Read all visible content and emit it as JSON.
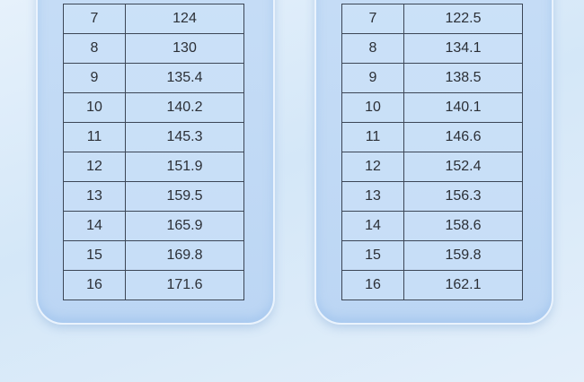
{
  "tables": [
    {
      "rows": [
        {
          "age": "7",
          "value": "124"
        },
        {
          "age": "8",
          "value": "130"
        },
        {
          "age": "9",
          "value": "135.4"
        },
        {
          "age": "10",
          "value": "140.2"
        },
        {
          "age": "11",
          "value": "145.3"
        },
        {
          "age": "12",
          "value": "151.9"
        },
        {
          "age": "13",
          "value": "159.5"
        },
        {
          "age": "14",
          "value": "165.9"
        },
        {
          "age": "15",
          "value": "169.8"
        },
        {
          "age": "16",
          "value": "171.6"
        }
      ]
    },
    {
      "rows": [
        {
          "age": "7",
          "value": "122.5"
        },
        {
          "age": "8",
          "value": "134.1"
        },
        {
          "age": "9",
          "value": "138.5"
        },
        {
          "age": "10",
          "value": "140.1"
        },
        {
          "age": "11",
          "value": "146.6"
        },
        {
          "age": "12",
          "value": "152.4"
        },
        {
          "age": "13",
          "value": "156.3"
        },
        {
          "age": "14",
          "value": "158.6"
        },
        {
          "age": "15",
          "value": "159.8"
        },
        {
          "age": "16",
          "value": "162.1"
        }
      ]
    }
  ]
}
